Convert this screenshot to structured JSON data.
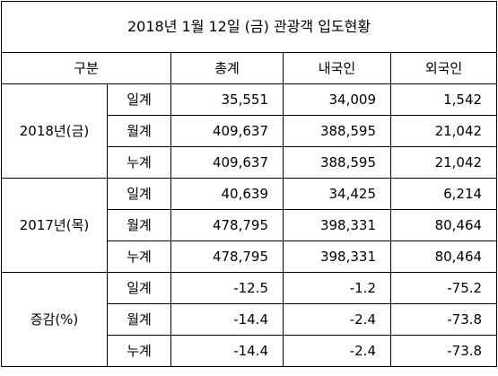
{
  "title": "2018년  1월  12일  (금)  관광객  입도현황",
  "headers": {
    "category": "구분",
    "total": "총계",
    "domestic": "내국인",
    "foreign": "외국인"
  },
  "groups": [
    {
      "label": "2018년(금)",
      "rows": [
        {
          "sub": "일계",
          "total": "35,551",
          "domestic": "34,009",
          "foreign": "1,542"
        },
        {
          "sub": "월계",
          "total": "409,637",
          "domestic": "388,595",
          "foreign": "21,042"
        },
        {
          "sub": "누계",
          "total": "409,637",
          "domestic": "388,595",
          "foreign": "21,042"
        }
      ]
    },
    {
      "label": "2017년(목)",
      "rows": [
        {
          "sub": "일계",
          "total": "40,639",
          "domestic": "34,425",
          "foreign": "6,214"
        },
        {
          "sub": "월계",
          "total": "478,795",
          "domestic": "398,331",
          "foreign": "80,464"
        },
        {
          "sub": "누계",
          "total": "478,795",
          "domestic": "398,331",
          "foreign": "80,464"
        }
      ]
    },
    {
      "label": "증감(%)",
      "rows": [
        {
          "sub": "일계",
          "total": "-12.5",
          "domestic": "-1.2",
          "foreign": "-75.2"
        },
        {
          "sub": "월계",
          "total": "-14.4",
          "domestic": "-2.4",
          "foreign": "-73.8"
        },
        {
          "sub": "누계",
          "total": "-14.4",
          "domestic": "-2.4",
          "foreign": "-73.8"
        }
      ]
    }
  ]
}
